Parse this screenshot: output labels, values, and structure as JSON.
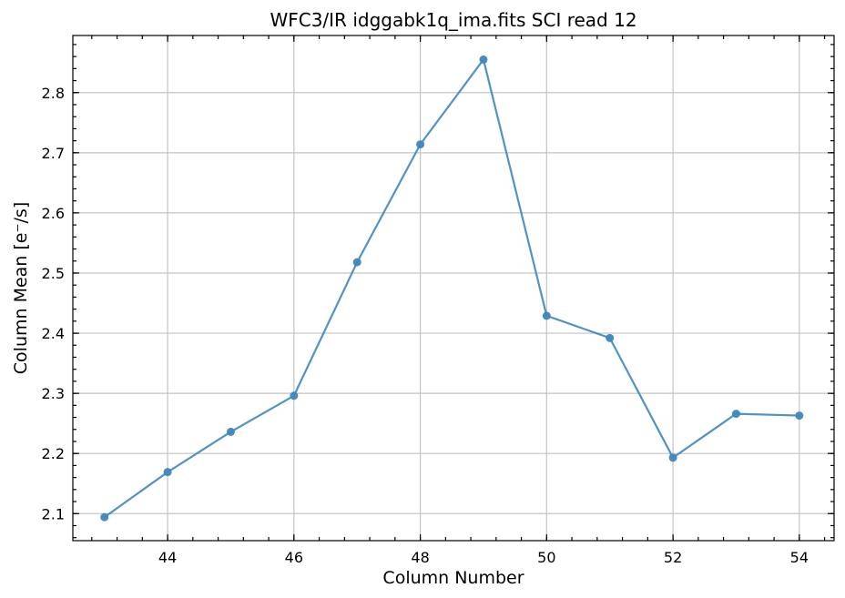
{
  "chart_data": {
    "type": "line",
    "title": "WFC3/IR idggabk1q_ima.fits SCI read 12",
    "xlabel": "Column Number",
    "ylabel": "Column Mean [e⁻/s]",
    "xlim": [
      42.5,
      54.55
    ],
    "ylim": [
      2.055,
      2.895
    ],
    "xticks": [
      44,
      46,
      48,
      50,
      52,
      54
    ],
    "yticks": [
      2.1,
      2.2,
      2.3,
      2.4,
      2.5,
      2.6,
      2.7,
      2.8
    ],
    "x_minor_step": 0.4,
    "y_minor_step": 0.02,
    "grid": true,
    "series": [
      {
        "color": "#3e87bd",
        "x": [
          43,
          44,
          45,
          46,
          47,
          48,
          49,
          50,
          51,
          52,
          53,
          54
        ],
        "y": [
          2.094,
          2.169,
          2.236,
          2.296,
          2.518,
          2.714,
          2.855,
          2.429,
          2.392,
          2.193,
          2.266,
          2.263
        ]
      }
    ]
  }
}
